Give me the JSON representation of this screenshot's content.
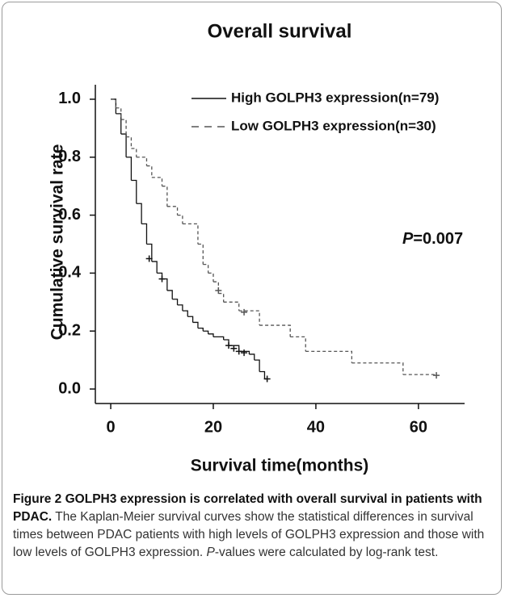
{
  "chart_data": {
    "type": "survival",
    "title": "Overall survival",
    "x_label": "Survival time(months)",
    "y_label": "Cumulative survival rate",
    "xlim": [
      -3,
      69
    ],
    "ylim": [
      -0.05,
      1.05
    ],
    "xticks": [
      0,
      20,
      40,
      60
    ],
    "yticks": [
      {
        "value": 0,
        "label": "0.0"
      },
      0.2,
      0.4,
      0.6,
      0.8,
      {
        "value": 1,
        "label": "1.0"
      }
    ],
    "series": [
      {
        "name": "High GOLPH3 expression(n=79)",
        "color": "#111111",
        "dash": "none",
        "x": [
          0,
          1,
          2,
          3,
          4,
          5,
          6,
          7,
          8,
          9,
          10,
          11,
          12,
          13,
          14,
          15,
          16,
          17,
          18,
          19,
          20,
          22,
          23,
          25,
          27,
          28,
          29,
          30
        ],
        "values": [
          1.0,
          0.95,
          0.88,
          0.8,
          0.72,
          0.64,
          0.57,
          0.5,
          0.44,
          0.4,
          0.38,
          0.34,
          0.31,
          0.29,
          0.27,
          0.25,
          0.23,
          0.21,
          0.2,
          0.19,
          0.18,
          0.17,
          0.15,
          0.13,
          0.12,
          0.1,
          0.06,
          0.035
        ],
        "censor_x": [
          7.5,
          10,
          23,
          24,
          25,
          26,
          30.5
        ],
        "censor_values": [
          0.45,
          0.38,
          0.15,
          0.14,
          0.13,
          0.125,
          0.035
        ]
      },
      {
        "name": "Low GOLPH3 expression(n=30)",
        "color": "#555555",
        "dash": "4 3",
        "x": [
          0,
          1,
          2,
          3,
          4,
          5,
          7,
          8,
          10,
          11,
          13,
          14,
          17,
          18,
          19,
          20,
          21,
          22,
          25,
          29,
          35,
          38,
          47,
          57
        ],
        "values": [
          1.0,
          0.97,
          0.93,
          0.87,
          0.83,
          0.8,
          0.77,
          0.73,
          0.7,
          0.63,
          0.6,
          0.57,
          0.5,
          0.43,
          0.4,
          0.37,
          0.33,
          0.3,
          0.27,
          0.22,
          0.18,
          0.13,
          0.09,
          0.05
        ],
        "censor_x": [
          21,
          26,
          63.5
        ],
        "censor_values": [
          0.34,
          0.265,
          0.047
        ]
      }
    ],
    "annotation": {
      "italic": "P",
      "text": "=0.007"
    },
    "caption": {
      "label": "Figure 2",
      "heading": "GOLPH3 expression is correlated with overall survival in patients with PDAC.",
      "text": "The Kaplan-Meier survival curves show the statistical differences in survival times between PDAC patients with high levels of GOLPH3 expression and those with low levels of GOLPH3 expression.",
      "italic": "P",
      "rest": "-values were calculated by log-rank test."
    }
  }
}
